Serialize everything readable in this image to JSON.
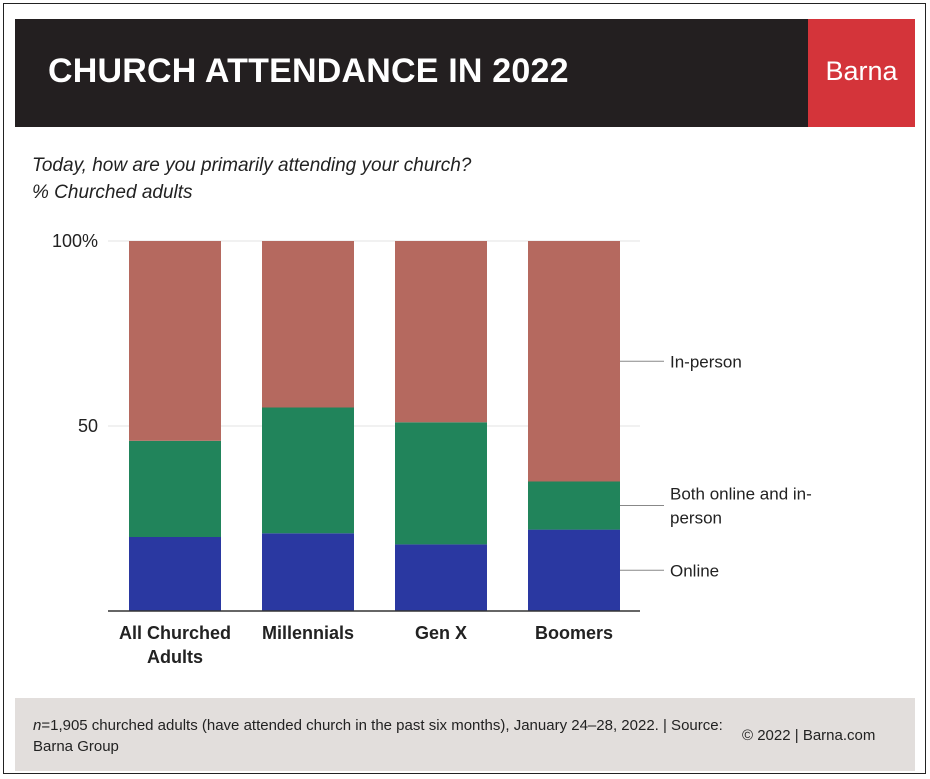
{
  "header": {
    "title": "CHURCH ATTENDANCE IN 2022",
    "brand": "Barna",
    "background_color": "#231f20",
    "brand_color": "#d4343a"
  },
  "question": "Today, how are you primarily attending your church?",
  "unit_label": "% Churched adults",
  "chart_data": {
    "type": "bar",
    "stacked": true,
    "orientation": "vertical",
    "categories": [
      "All Churched Adults",
      "Millennials",
      "Gen X",
      "Boomers"
    ],
    "series": [
      {
        "name": "Online",
        "color": "#2a38a1",
        "values": [
          20,
          21,
          18,
          22
        ]
      },
      {
        "name": "Both online and in-person",
        "color": "#21845b",
        "values": [
          26,
          34,
          33,
          13
        ]
      },
      {
        "name": "In-person",
        "color": "#b5695f",
        "values": [
          54,
          45,
          49,
          65
        ]
      }
    ],
    "yticks": [
      {
        "value": 100,
        "label": "100%"
      },
      {
        "value": 50,
        "label": "50"
      }
    ],
    "ylim": [
      0,
      100
    ],
    "grid": true,
    "legend_placement": "right",
    "legend_labels": {
      "In-person": "In-person",
      "Both online and in-person": "Both online and in-\nperson",
      "Online": "Online"
    },
    "category_labels": [
      "All Churched\nAdults",
      "Millennials",
      "Gen X",
      "Boomers"
    ]
  },
  "footer": {
    "n_prefix": "n",
    "note": "=1,905 churched adults (have attended church in the past six months), January 24–28, 2022. | Source: Barna Group",
    "copyright": "© 2022 |  Barna.com"
  }
}
